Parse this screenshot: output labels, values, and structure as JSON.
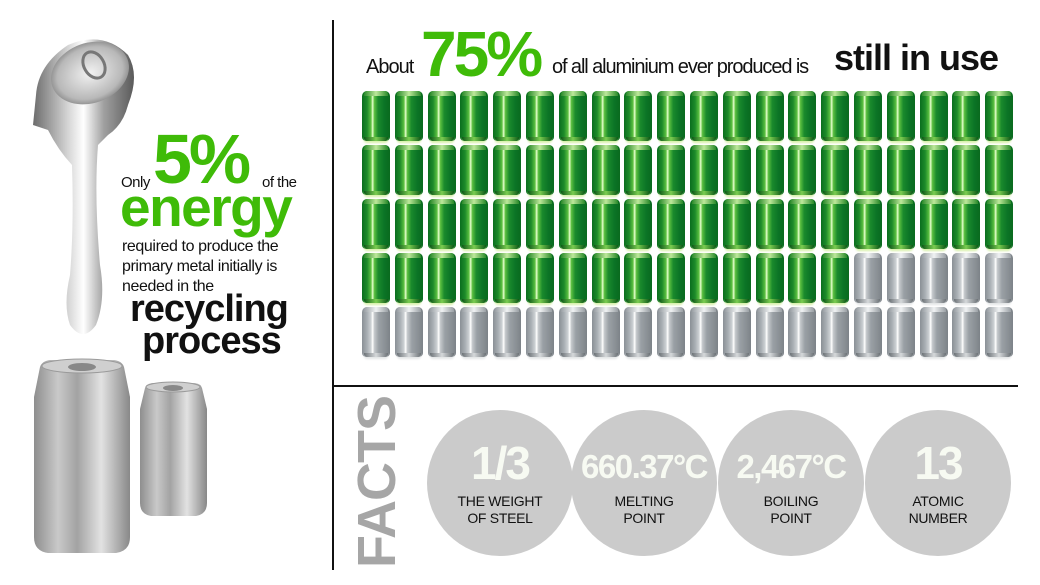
{
  "left_panel": {
    "only": "Only",
    "percent": "5%",
    "of_the": "of the",
    "energy": "energy",
    "body_lines": [
      "required to produce the",
      "primary metal initially is",
      "needed in the"
    ],
    "recycling": "recycling",
    "process": "process",
    "images": [
      "melting-can",
      "large-aluminium-can",
      "small-aluminium-can"
    ]
  },
  "headline": {
    "about": "About",
    "percent": "75%",
    "middle": "of all aluminium ever produced is",
    "emphasis": "still in use"
  },
  "can_grid": {
    "columns": 20,
    "rows": 5,
    "total": 100,
    "green_count": 75,
    "silver_count": 25,
    "green_color": "#1d8a2a",
    "silver_color": "#a8aeb3"
  },
  "facts": {
    "title": "FACTS",
    "items": [
      {
        "value": "1/3",
        "label_lines": [
          "THE WEIGHT",
          "OF STEEL"
        ]
      },
      {
        "value": "660.37°C",
        "label_lines": [
          "MELTING",
          "POINT"
        ]
      },
      {
        "value": "2,467°C",
        "label_lines": [
          "BOILING",
          "POINT"
        ]
      },
      {
        "value": "13",
        "label_lines": [
          "ATOMIC",
          "NUMBER"
        ]
      }
    ]
  },
  "colors": {
    "accent_green": "#3fbb08",
    "circle_gray": "#cbcbcb",
    "facts_gray": "#a6a6a6",
    "text": "#111111"
  }
}
